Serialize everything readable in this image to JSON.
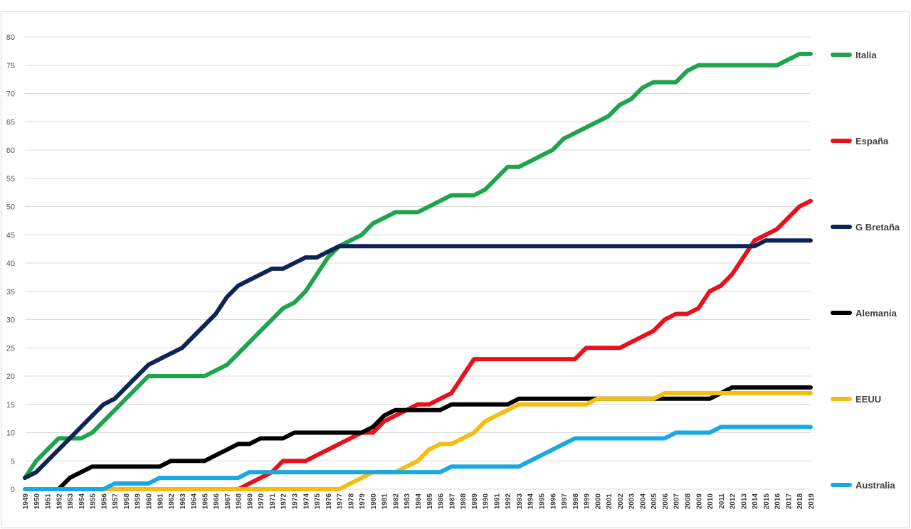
{
  "chart_data": {
    "type": "line",
    "title": "",
    "xlabel": "",
    "ylabel": "",
    "ylim": [
      0,
      80
    ],
    "yticks": [
      0,
      5,
      10,
      15,
      20,
      25,
      30,
      35,
      40,
      45,
      50,
      55,
      60,
      65,
      70,
      75,
      80
    ],
    "grid": true,
    "legend_position": "right",
    "x": [
      1949,
      1950,
      1951,
      1952,
      1953,
      1954,
      1955,
      1956,
      1957,
      1958,
      1959,
      1960,
      1961,
      1962,
      1963,
      1964,
      1965,
      1966,
      1967,
      1968,
      1969,
      1970,
      1971,
      1972,
      1973,
      1974,
      1975,
      1976,
      1977,
      1978,
      1979,
      1980,
      1981,
      1982,
      1983,
      1984,
      1985,
      1986,
      1987,
      1988,
      1989,
      1990,
      1991,
      1992,
      1993,
      1994,
      1995,
      1996,
      1997,
      1998,
      1999,
      2000,
      2001,
      2002,
      2003,
      2004,
      2005,
      2006,
      2007,
      2008,
      2009,
      2010,
      2011,
      2012,
      2013,
      2014,
      2015,
      2016,
      2017,
      2018,
      2019
    ],
    "series": [
      {
        "name": "Italia",
        "color": "#1ea54b",
        "values": [
          2,
          5,
          7,
          9,
          9,
          9,
          10,
          12,
          14,
          16,
          18,
          20,
          20,
          20,
          20,
          20,
          20,
          21,
          22,
          24,
          26,
          28,
          30,
          32,
          33,
          35,
          38,
          41,
          43,
          44,
          45,
          47,
          48,
          49,
          49,
          49,
          50,
          51,
          52,
          52,
          52,
          53,
          55,
          57,
          57,
          58,
          59,
          60,
          62,
          63,
          64,
          65,
          66,
          68,
          69,
          71,
          72,
          72,
          72,
          74,
          75,
          75,
          75,
          75,
          75,
          75,
          75,
          75,
          76,
          77,
          77
        ]
      },
      {
        "name": "España",
        "color": "#e8101a",
        "values": [
          0,
          0,
          0,
          0,
          0,
          0,
          0,
          0,
          0,
          0,
          0,
          0,
          0,
          0,
          0,
          0,
          0,
          0,
          0,
          0,
          1,
          2,
          3,
          5,
          5,
          5,
          6,
          7,
          8,
          9,
          10,
          10,
          12,
          13,
          14,
          15,
          15,
          16,
          17,
          20,
          23,
          23,
          23,
          23,
          23,
          23,
          23,
          23,
          23,
          23,
          25,
          25,
          25,
          25,
          26,
          27,
          28,
          30,
          31,
          31,
          32,
          35,
          36,
          38,
          41,
          44,
          45,
          46,
          48,
          50,
          51
        ]
      },
      {
        "name": "G Bretaña",
        "color": "#0d2457",
        "values": [
          2,
          3,
          5,
          7,
          9,
          11,
          13,
          15,
          16,
          18,
          20,
          22,
          23,
          24,
          25,
          27,
          29,
          31,
          34,
          36,
          37,
          38,
          39,
          39,
          40,
          41,
          41,
          42,
          43,
          43,
          43,
          43,
          43,
          43,
          43,
          43,
          43,
          43,
          43,
          43,
          43,
          43,
          43,
          43,
          43,
          43,
          43,
          43,
          43,
          43,
          43,
          43,
          43,
          43,
          43,
          43,
          43,
          43,
          43,
          43,
          43,
          43,
          43,
          43,
          43,
          43,
          44,
          44,
          44,
          44,
          44
        ]
      },
      {
        "name": "Alemania",
        "color": "#000000",
        "values": [
          0,
          0,
          0,
          0,
          2,
          3,
          4,
          4,
          4,
          4,
          4,
          4,
          4,
          5,
          5,
          5,
          5,
          6,
          7,
          8,
          8,
          9,
          9,
          9,
          10,
          10,
          10,
          10,
          10,
          10,
          10,
          11,
          13,
          14,
          14,
          14,
          14,
          14,
          15,
          15,
          15,
          15,
          15,
          15,
          16,
          16,
          16,
          16,
          16,
          16,
          16,
          16,
          16,
          16,
          16,
          16,
          16,
          16,
          16,
          16,
          16,
          16,
          17,
          18,
          18,
          18,
          18,
          18,
          18,
          18,
          18
        ]
      },
      {
        "name": "EEUU",
        "color": "#f4bd0f",
        "values": [
          0,
          0,
          0,
          0,
          0,
          0,
          0,
          0,
          0,
          0,
          0,
          0,
          0,
          0,
          0,
          0,
          0,
          0,
          0,
          0,
          0,
          0,
          0,
          0,
          0,
          0,
          0,
          0,
          0,
          1,
          2,
          3,
          3,
          3,
          4,
          5,
          7,
          8,
          8,
          9,
          10,
          12,
          13,
          14,
          15,
          15,
          15,
          15,
          15,
          15,
          15,
          16,
          16,
          16,
          16,
          16,
          16,
          17,
          17,
          17,
          17,
          17,
          17,
          17,
          17,
          17,
          17,
          17,
          17,
          17,
          17
        ]
      },
      {
        "name": "Australia",
        "color": "#1aa8e0",
        "values": [
          0,
          0,
          0,
          0,
          0,
          0,
          0,
          0,
          1,
          1,
          1,
          1,
          2,
          2,
          2,
          2,
          2,
          2,
          2,
          2,
          3,
          3,
          3,
          3,
          3,
          3,
          3,
          3,
          3,
          3,
          3,
          3,
          3,
          3,
          3,
          3,
          3,
          3,
          4,
          4,
          4,
          4,
          4,
          4,
          4,
          5,
          6,
          7,
          8,
          9,
          9,
          9,
          9,
          9,
          9,
          9,
          9,
          9,
          10,
          10,
          10,
          10,
          11,
          11,
          11,
          11,
          11,
          11,
          11,
          11,
          11
        ]
      }
    ]
  }
}
